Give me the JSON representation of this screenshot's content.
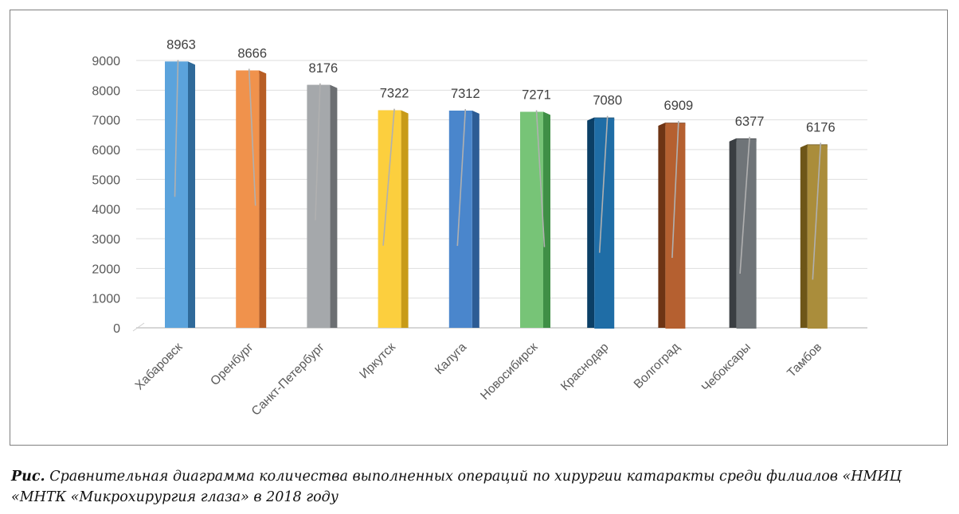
{
  "chart_data": {
    "type": "bar",
    "title": "",
    "xlabel": "",
    "ylabel": "",
    "ylim": [
      0,
      9000
    ],
    "yticks": [
      0,
      1000,
      2000,
      3000,
      4000,
      5000,
      6000,
      7000,
      8000,
      9000
    ],
    "grid": true,
    "categories": [
      "Хабаровск",
      "Оренбург",
      "Санкт-Петербург",
      "Иркутск",
      "Калуга",
      "Новосибирск",
      "Краснодар",
      "Волгоград",
      "Чебоксары",
      "Тамбов"
    ],
    "values": [
      8963,
      8666,
      8176,
      7322,
      7312,
      7271,
      7080,
      6909,
      6377,
      6176
    ],
    "colors": [
      "#5ba3dc",
      "#f0924c",
      "#a5a8ab",
      "#fccf3e",
      "#4a86cc",
      "#77c477",
      "#1f6da6",
      "#b56030",
      "#6f7478",
      "#aa8d3b"
    ],
    "side_colors": [
      "#2f6a9a",
      "#b85e25",
      "#6c6f72",
      "#c89b18",
      "#2d5c95",
      "#3f8f46",
      "#0b3f66",
      "#6e3414",
      "#3a3e42",
      "#6e5618"
    ]
  },
  "caption": {
    "lead": "Рис.",
    "text": " Сравнительная диаграмма количества выполненных операций по хирургии катаракты среди филиалов «НМИЦ «МНТК «Микрохирургия глаза» в 2018 году"
  }
}
